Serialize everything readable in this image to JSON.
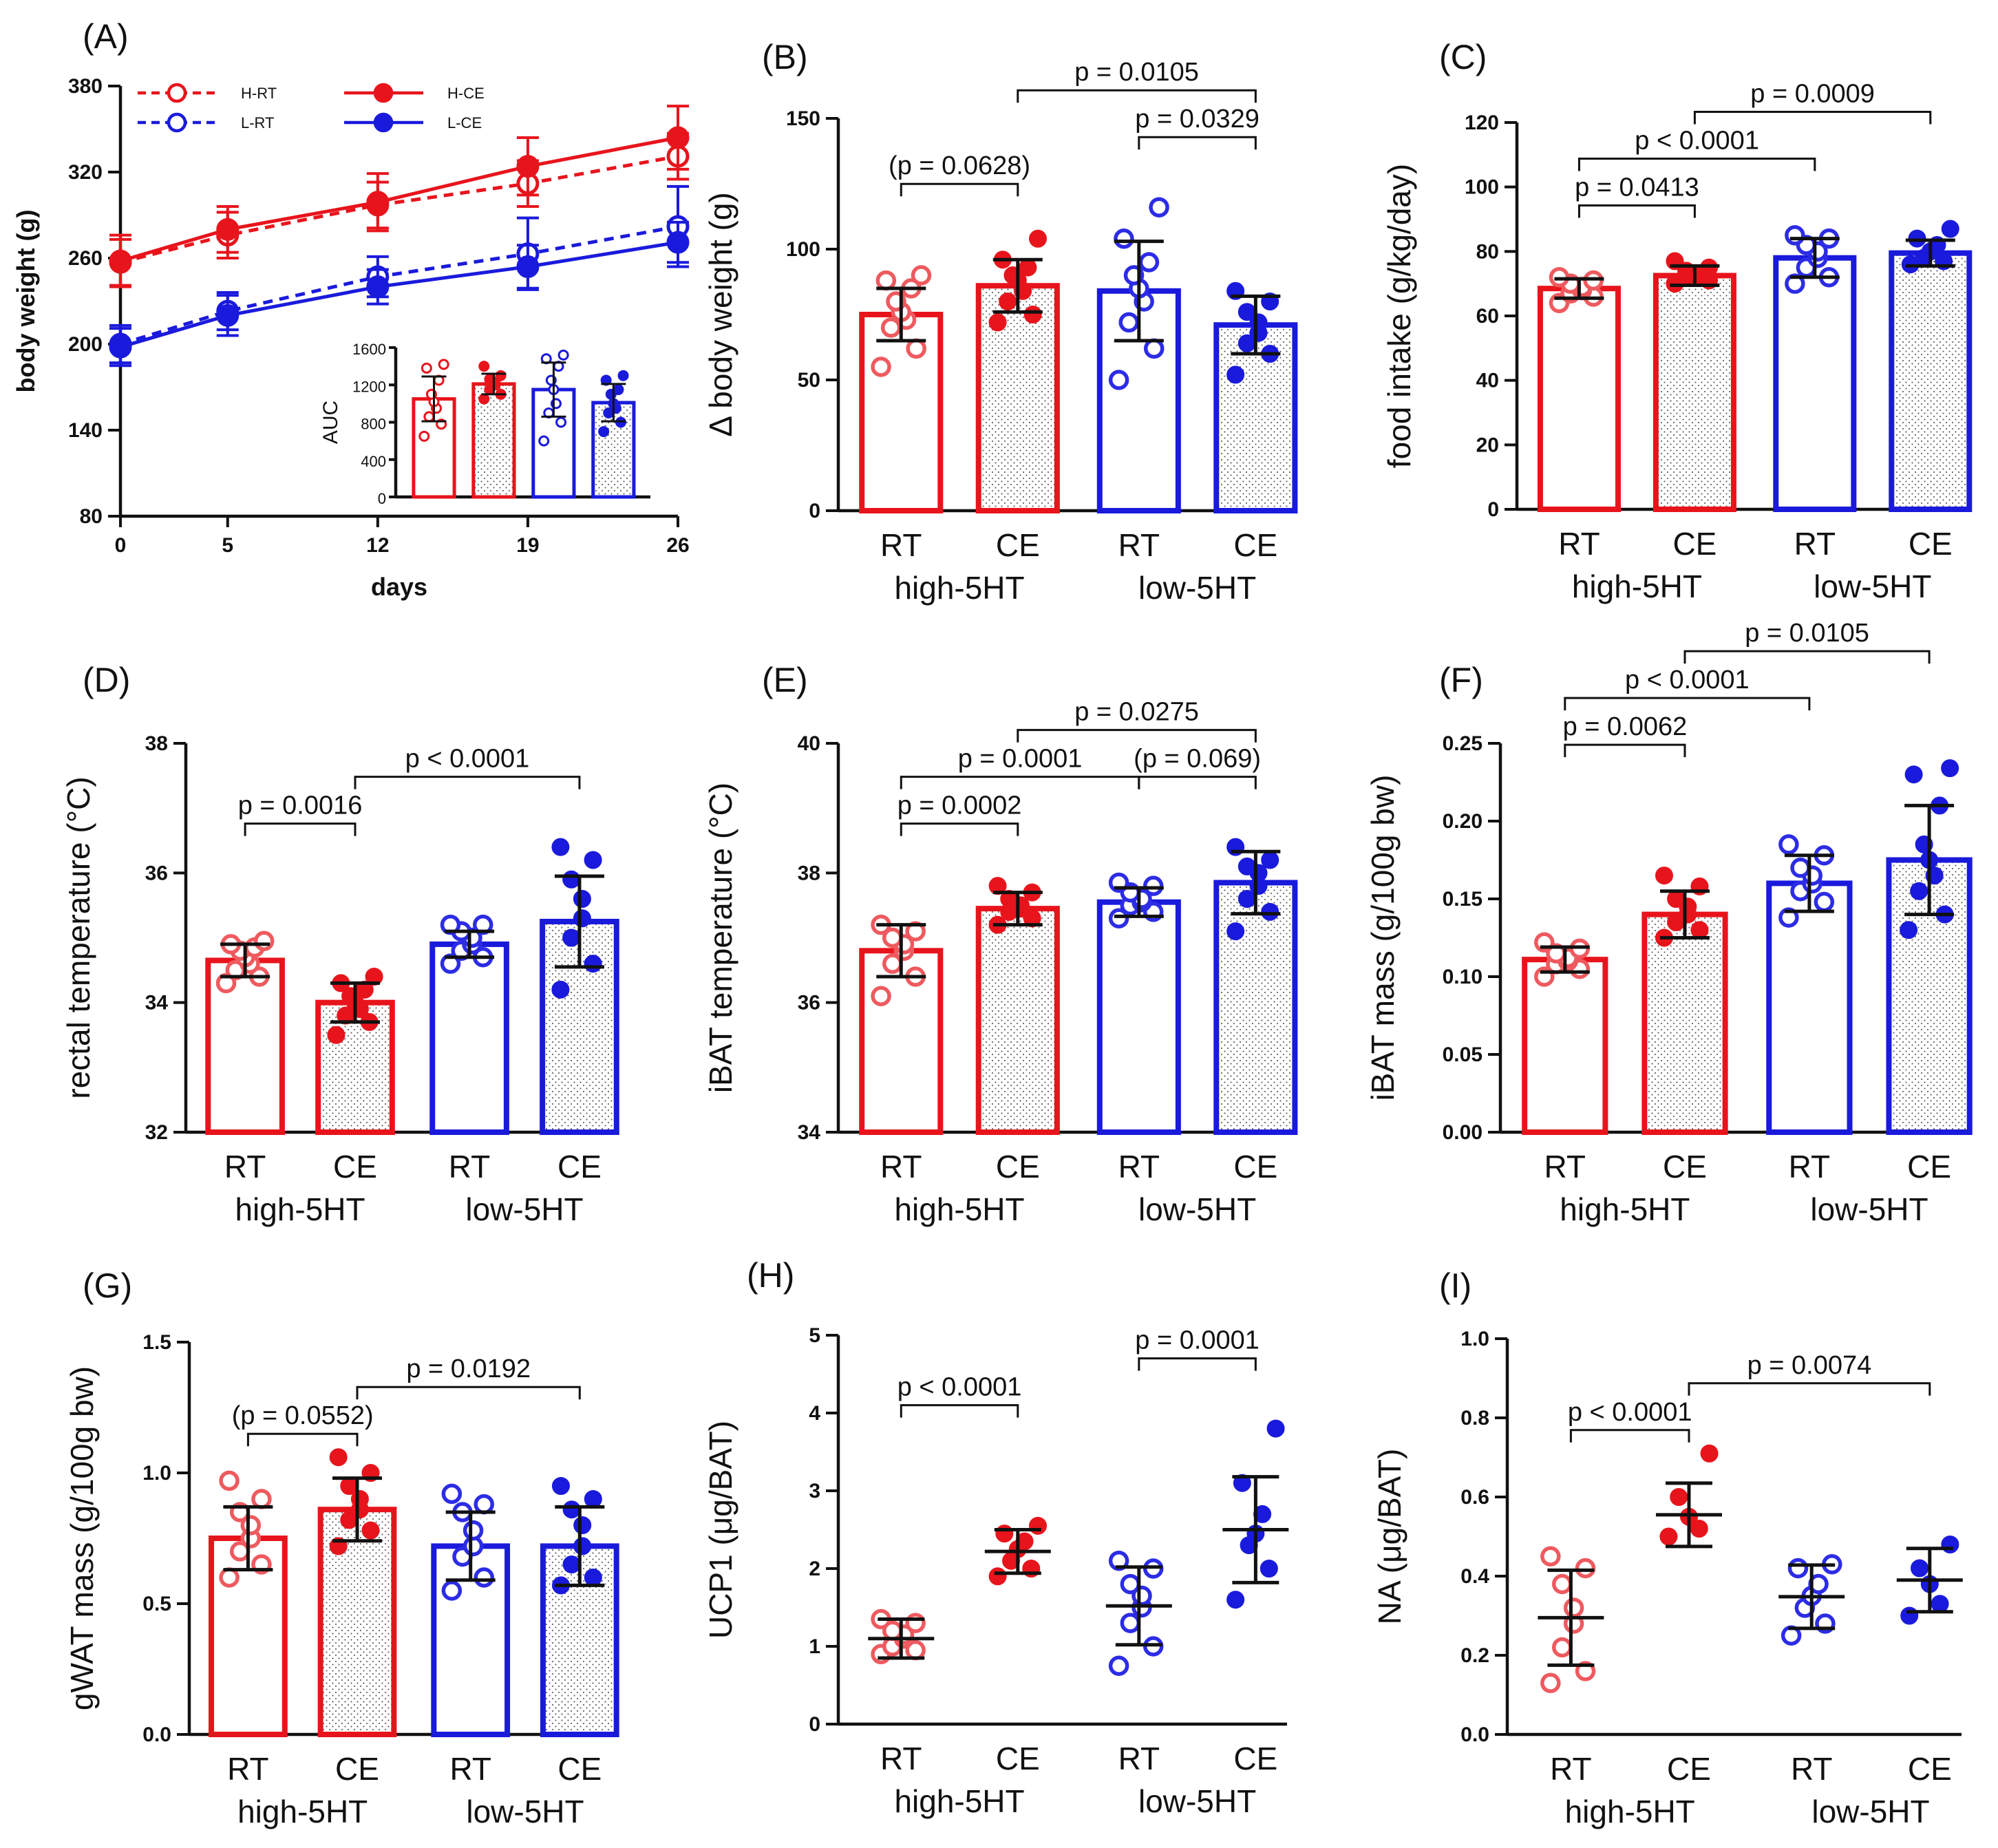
{
  "figure": {
    "colors": {
      "red": "#e8141c",
      "blue": "#1a1adc",
      "open_red": "#ee5a5f",
      "open_blue": "#2c2ce6",
      "black": "#111111"
    }
  },
  "chart_data": [
    {
      "id": "A",
      "panel_label": "(A)",
      "type": "line",
      "ylabel": "body weight (g)",
      "xlabel": "days",
      "x": [
        0,
        5,
        12,
        19,
        26
      ],
      "xticks": [
        "0",
        "5",
        "12",
        "19",
        "26"
      ],
      "ylim": [
        80,
        380
      ],
      "yticks": [
        80,
        140,
        200,
        260,
        320,
        380
      ],
      "series": [
        {
          "name": "H-RT",
          "color": "#e8141c",
          "dashed": true,
          "filled": false,
          "values": [
            257,
            276,
            297,
            312,
            331
          ],
          "err": [
            16,
            16,
            16,
            16,
            16
          ]
        },
        {
          "name": "L-RT",
          "color": "#1a1adc",
          "dashed": true,
          "filled": false,
          "values": [
            200,
            223,
            247,
            263,
            282
          ],
          "err": [
            13,
            13,
            14,
            25,
            28
          ]
        },
        {
          "name": "H-CE",
          "color": "#e8141c",
          "dashed": false,
          "filled": true,
          "values": [
            258,
            280,
            299,
            324,
            344
          ],
          "err": [
            18,
            16,
            20,
            20,
            22
          ]
        },
        {
          "name": "L-CE",
          "color": "#1a1adc",
          "dashed": false,
          "filled": true,
          "values": [
            198,
            220,
            240,
            254,
            271
          ],
          "err": [
            13,
            14,
            12,
            15,
            14
          ]
        }
      ],
      "inset": {
        "type": "bar",
        "ylabel": "AUC",
        "ylim": [
          0,
          1600
        ],
        "yticks": [
          0,
          400,
          800,
          1200,
          1600
        ],
        "bars": [
          {
            "group": "H-RT",
            "color": "#e8141c",
            "hatched": false,
            "mean": 1050,
            "sd": 240,
            "points": [
              650,
              780,
              860,
              950,
              1020,
              1100,
              1250,
              1380,
              1420
            ]
          },
          {
            "group": "H-CE",
            "color": "#e8141c",
            "hatched": true,
            "mean": 1210,
            "sd": 110,
            "points": [
              1050,
              1100,
              1150,
              1200,
              1230,
              1260,
              1300,
              1400
            ]
          },
          {
            "group": "L-RT",
            "color": "#1a1adc",
            "hatched": false,
            "mean": 1150,
            "sd": 290,
            "points": [
              600,
              800,
              900,
              1000,
              1150,
              1250,
              1400,
              1480,
              1520
            ]
          },
          {
            "group": "L-CE",
            "color": "#1a1adc",
            "hatched": true,
            "mean": 1010,
            "sd": 200,
            "points": [
              700,
              800,
              900,
              950,
              1000,
              1100,
              1150,
              1250,
              1300
            ]
          }
        ]
      }
    },
    {
      "id": "B",
      "panel_label": "(B)",
      "type": "bar",
      "ylabel": "Δ body weight (g)",
      "ylim": [
        0,
        150
      ],
      "yticks": [
        0,
        50,
        100,
        150
      ],
      "categories": [
        "RT",
        "CE",
        "RT",
        "CE"
      ],
      "groups": [
        "high-5HT",
        "low-5HT"
      ],
      "values": [
        75,
        86,
        84,
        71
      ],
      "sd": [
        10,
        10,
        19,
        11
      ],
      "points": [
        [
          55,
          62,
          70,
          73,
          76,
          80,
          85,
          88,
          90
        ],
        [
          72,
          75,
          80,
          84,
          88,
          90,
          93,
          96,
          104
        ],
        [
          50,
          62,
          72,
          80,
          85,
          90,
          95,
          104,
          116
        ],
        [
          52,
          60,
          64,
          68,
          72,
          76,
          80,
          84
        ]
      ],
      "comparisons": [
        {
          "label": "(p = 0.0628)",
          "from": 0,
          "to": 1,
          "row": 0
        },
        {
          "label": "p = 0.0329",
          "from": 2,
          "to": 3,
          "row": 1
        },
        {
          "label": "p = 0.0105",
          "from": 1,
          "to": 3,
          "row": 2
        }
      ]
    },
    {
      "id": "C",
      "panel_label": "(C)",
      "type": "bar",
      "ylabel": "food intake (g/kg/day)",
      "ylim": [
        0,
        120
      ],
      "yticks": [
        0,
        20,
        40,
        60,
        80,
        100,
        120
      ],
      "categories": [
        "RT",
        "CE",
        "RT",
        "CE"
      ],
      "groups": [
        "high-5HT",
        "low-5HT"
      ],
      "values": [
        68.5,
        72.5,
        78,
        79.5
      ],
      "sd": [
        3,
        3,
        6,
        4
      ],
      "points": [
        [
          64,
          66,
          67,
          68,
          69,
          70,
          71,
          72
        ],
        [
          70,
          71,
          72,
          72.5,
          73,
          74,
          75,
          77
        ],
        [
          70,
          72,
          75,
          78,
          80,
          82,
          84,
          85
        ],
        [
          76,
          77,
          78,
          80,
          82,
          84,
          87
        ]
      ],
      "comparisons": [
        {
          "label": "p = 0.0413",
          "from": 0,
          "to": 1,
          "row": 0
        },
        {
          "label": "p < 0.0001",
          "from": 0,
          "to": 2,
          "row": 1
        },
        {
          "label": "p = 0.0009",
          "from": 1,
          "to": 3,
          "row": 2
        }
      ]
    },
    {
      "id": "D",
      "panel_label": "(D)",
      "type": "bar",
      "ylabel": "rectal temperature (°C)",
      "ylim": [
        32,
        38
      ],
      "yticks": [
        32,
        34,
        36,
        38
      ],
      "categories": [
        "RT",
        "CE",
        "RT",
        "CE"
      ],
      "groups": [
        "high-5HT",
        "low-5HT"
      ],
      "values": [
        34.65,
        34.0,
        34.9,
        35.25
      ],
      "sd": [
        0.25,
        0.3,
        0.2,
        0.7
      ],
      "points": [
        [
          34.3,
          34.4,
          34.5,
          34.6,
          34.7,
          34.8,
          34.85,
          34.9,
          34.95
        ],
        [
          33.5,
          33.7,
          33.8,
          33.9,
          34.0,
          34.1,
          34.2,
          34.3,
          34.4
        ],
        [
          34.6,
          34.7,
          34.8,
          34.9,
          35.0,
          35.1,
          35.2,
          35.2
        ],
        [
          34.2,
          34.6,
          35.0,
          35.3,
          35.6,
          35.9,
          36.2,
          36.4
        ]
      ],
      "comparisons": [
        {
          "label": "p = 0.0016",
          "from": 0,
          "to": 1,
          "row": 0
        },
        {
          "label": "p < 0.0001",
          "from": 1,
          "to": 3,
          "row": 1
        }
      ]
    },
    {
      "id": "E",
      "panel_label": "(E)",
      "type": "bar",
      "ylabel": "iBAT temperature (°C)",
      "ylim": [
        34,
        40
      ],
      "yticks": [
        34,
        36,
        38,
        40
      ],
      "categories": [
        "RT",
        "CE",
        "RT",
        "CE"
      ],
      "groups": [
        "high-5HT",
        "low-5HT"
      ],
      "values": [
        36.8,
        37.45,
        37.55,
        37.85
      ],
      "sd": [
        0.4,
        0.25,
        0.22,
        0.48
      ],
      "points": [
        [
          36.1,
          36.4,
          36.6,
          36.8,
          36.9,
          37.0,
          37.1,
          37.2
        ],
        [
          37.2,
          37.3,
          37.4,
          37.45,
          37.5,
          37.6,
          37.7,
          37.8
        ],
        [
          37.3,
          37.4,
          37.5,
          37.55,
          37.6,
          37.7,
          37.8,
          37.85
        ],
        [
          37.1,
          37.4,
          37.6,
          37.8,
          38.0,
          38.1,
          38.2,
          38.4
        ]
      ],
      "comparisons": [
        {
          "label": "p = 0.0002",
          "from": 0,
          "to": 1,
          "row": 0
        },
        {
          "label": "(p = 0.069)",
          "from": 2,
          "to": 3,
          "row": 1
        },
        {
          "label": "p = 0.0001",
          "from": 0,
          "to": 2,
          "row": 1
        },
        {
          "label": "p = 0.0275",
          "from": 1,
          "to": 3,
          "row": 2
        }
      ]
    },
    {
      "id": "F",
      "panel_label": "(F)",
      "type": "bar",
      "ylabel": "iBAT mass (g/100g bw)",
      "ylim": [
        0,
        0.25
      ],
      "yticks": [
        "0.00",
        "0.05",
        "0.10",
        "0.15",
        "0.20",
        "0.25"
      ],
      "categories": [
        "RT",
        "CE",
        "RT",
        "CE"
      ],
      "groups": [
        "high-5HT",
        "low-5HT"
      ],
      "values": [
        0.111,
        0.14,
        0.16,
        0.175
      ],
      "sd": [
        0.008,
        0.015,
        0.018,
        0.035
      ],
      "points": [
        [
          0.1,
          0.105,
          0.108,
          0.11,
          0.112,
          0.115,
          0.118,
          0.122
        ],
        [
          0.125,
          0.13,
          0.135,
          0.14,
          0.145,
          0.15,
          0.158,
          0.165
        ],
        [
          0.138,
          0.148,
          0.155,
          0.16,
          0.165,
          0.17,
          0.178,
          0.185
        ],
        [
          0.13,
          0.14,
          0.155,
          0.165,
          0.175,
          0.185,
          0.21,
          0.23,
          0.234
        ]
      ],
      "comparisons": [
        {
          "label": "p = 0.0062",
          "from": 0,
          "to": 1,
          "row": 0
        },
        {
          "label": "p < 0.0001",
          "from": 0,
          "to": 2,
          "row": 1
        },
        {
          "label": "p = 0.0105",
          "from": 1,
          "to": 3,
          "row": 2
        }
      ]
    },
    {
      "id": "G",
      "panel_label": "(G)",
      "type": "bar",
      "ylabel": "gWAT mass (g/100g bw)",
      "ylim": [
        0,
        1.5
      ],
      "yticks": [
        "0.0",
        "0.5",
        "1.0",
        "1.5"
      ],
      "categories": [
        "RT",
        "CE",
        "RT",
        "CE"
      ],
      "groups": [
        "high-5HT",
        "low-5HT"
      ],
      "values": [
        0.75,
        0.86,
        0.72,
        0.72
      ],
      "sd": [
        0.12,
        0.12,
        0.13,
        0.15
      ],
      "points": [
        [
          0.6,
          0.65,
          0.7,
          0.75,
          0.8,
          0.85,
          0.9,
          0.97
        ],
        [
          0.72,
          0.78,
          0.82,
          0.86,
          0.9,
          0.95,
          1.0,
          1.06
        ],
        [
          0.55,
          0.6,
          0.68,
          0.72,
          0.78,
          0.85,
          0.88,
          0.92
        ],
        [
          0.57,
          0.6,
          0.65,
          0.72,
          0.8,
          0.86,
          0.9,
          0.95
        ]
      ],
      "comparisons": [
        {
          "label": "(p = 0.0552)",
          "from": 0,
          "to": 1,
          "row": 0
        },
        {
          "label": "p = 0.0192",
          "from": 1,
          "to": 3,
          "row": 1
        }
      ]
    },
    {
      "id": "H",
      "panel_label": "(H)",
      "type": "scatter",
      "ylabel": "UCP1 (μg/BAT)",
      "ylim": [
        0,
        5
      ],
      "yticks": [
        0,
        1,
        2,
        3,
        4,
        5
      ],
      "categories": [
        "RT",
        "CE",
        "RT",
        "CE"
      ],
      "groups": [
        "high-5HT",
        "low-5HT"
      ],
      "values": [
        1.1,
        2.22,
        1.52,
        2.5
      ],
      "sd": [
        0.25,
        0.28,
        0.5,
        0.68
      ],
      "points": [
        [
          0.9,
          0.95,
          1.0,
          1.1,
          1.15,
          1.2,
          1.3,
          1.35
        ],
        [
          1.9,
          2.0,
          2.1,
          2.25,
          2.35,
          2.45,
          2.55
        ],
        [
          0.75,
          1.0,
          1.3,
          1.5,
          1.65,
          1.8,
          2.0,
          2.1
        ],
        [
          1.6,
          2.0,
          2.3,
          2.45,
          2.7,
          3.1,
          3.8
        ]
      ],
      "comparisons": [
        {
          "label": "p < 0.0001",
          "from": 0,
          "to": 1,
          "row": 0
        },
        {
          "label": "p = 0.0001",
          "from": 2,
          "to": 3,
          "row": 1
        }
      ]
    },
    {
      "id": "I",
      "panel_label": "(I)",
      "type": "scatter",
      "ylabel": "NA (μg/BAT)",
      "ylim": [
        0,
        1.0
      ],
      "yticks": [
        "0.0",
        "0.2",
        "0.4",
        "0.6",
        "0.8",
        "1.0"
      ],
      "categories": [
        "RT",
        "CE",
        "RT",
        "CE"
      ],
      "groups": [
        "high-5HT",
        "low-5HT"
      ],
      "values": [
        0.295,
        0.555,
        0.348,
        0.39
      ],
      "sd": [
        0.12,
        0.08,
        0.08,
        0.08
      ],
      "points": [
        [
          0.13,
          0.16,
          0.22,
          0.28,
          0.32,
          0.38,
          0.42,
          0.45
        ],
        [
          0.5,
          0.52,
          0.55,
          0.6,
          0.71
        ],
        [
          0.25,
          0.28,
          0.32,
          0.35,
          0.38,
          0.42,
          0.43
        ],
        [
          0.3,
          0.33,
          0.38,
          0.42,
          0.48
        ]
      ],
      "comparisons": [
        {
          "label": "p < 0.0001",
          "from": 0,
          "to": 1,
          "row": 0
        },
        {
          "label": "p = 0.0074",
          "from": 1,
          "to": 3,
          "row": 1
        }
      ]
    }
  ]
}
